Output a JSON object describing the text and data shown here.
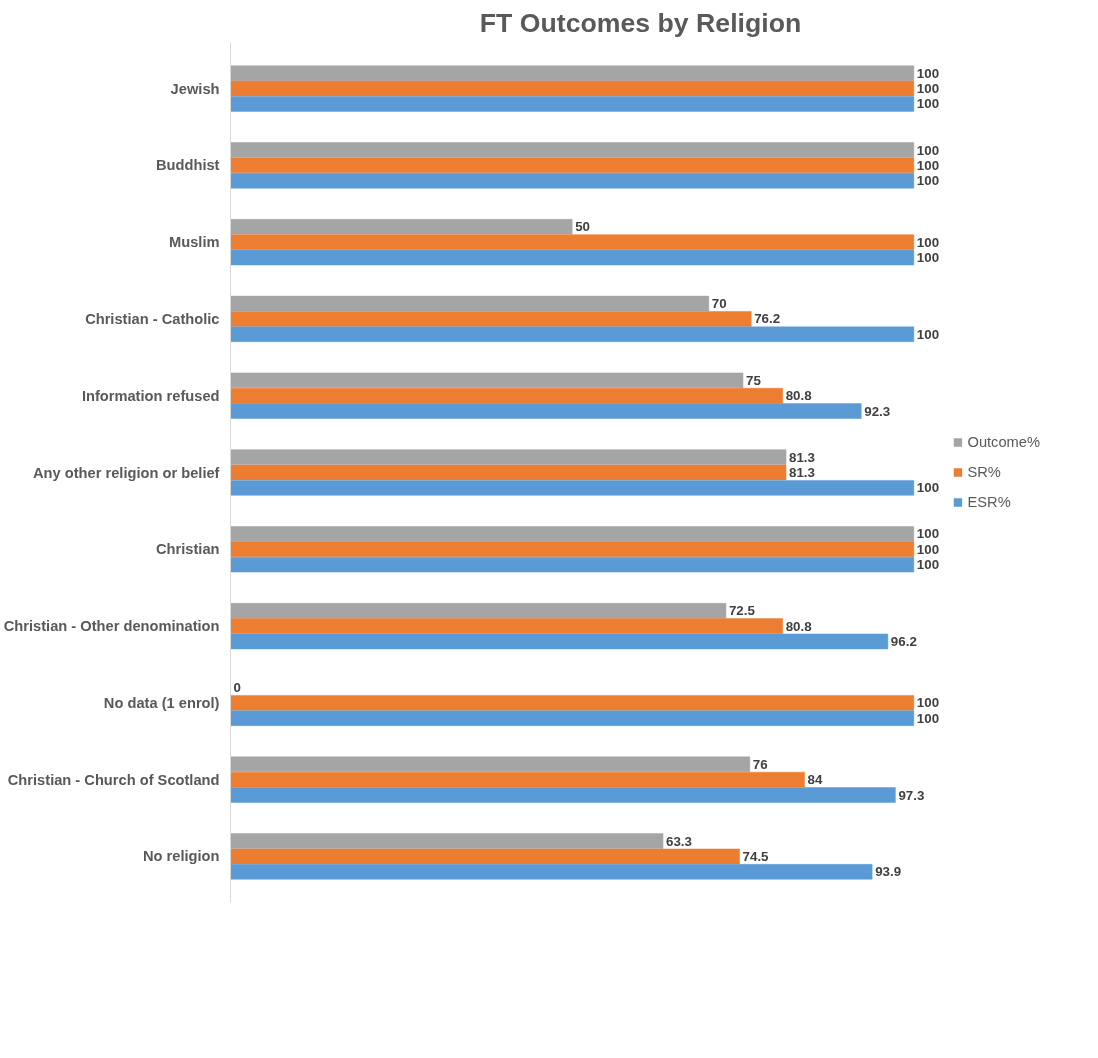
{
  "chart_data": {
    "type": "bar",
    "orientation": "horizontal",
    "title": "FT Outcomes by Religion",
    "categories": [
      "Jewish",
      "Buddhist",
      "Muslim",
      "Christian - Catholic",
      "Information refused",
      "Any other religion or belief",
      "Christian",
      "Christian - Other denomination",
      "No data (1 enrol)",
      "Christian - Church of Scotland",
      "No religion"
    ],
    "series": [
      {
        "name": "Outcome%",
        "color": "#a5a5a5",
        "values": [
          100,
          100,
          50,
          70,
          75,
          81.3,
          100,
          72.5,
          0,
          76,
          63.3
        ]
      },
      {
        "name": "SR%",
        "color": "#ed7d31",
        "values": [
          100,
          100,
          100,
          76.2,
          80.8,
          81.3,
          100,
          80.8,
          100,
          84,
          74.5
        ]
      },
      {
        "name": "ESR%",
        "color": "#5b9bd5",
        "values": [
          100,
          100,
          100,
          100,
          92.3,
          100,
          100,
          96.2,
          100,
          97.3,
          93.9
        ]
      }
    ],
    "data_labels": true,
    "legend": "right",
    "grid": false
  }
}
